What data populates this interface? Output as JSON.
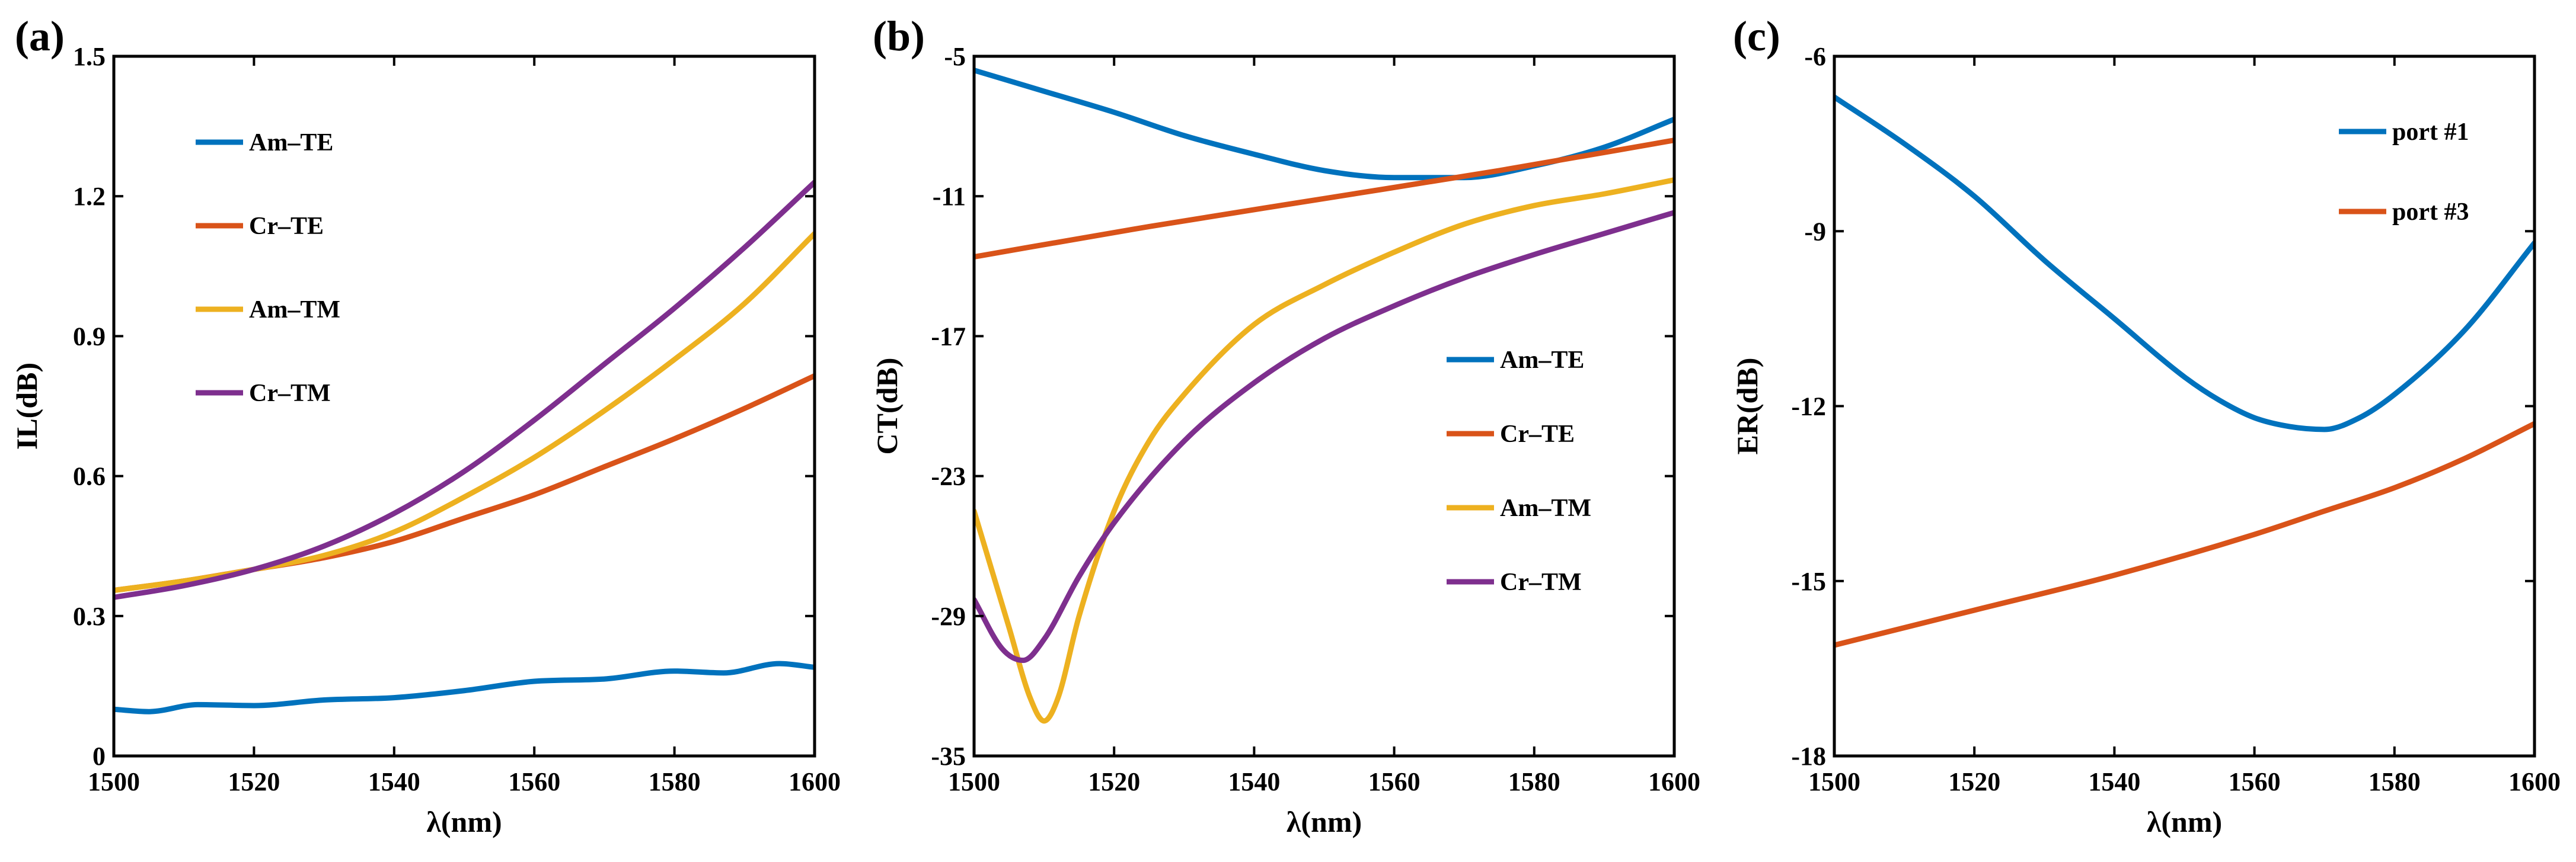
{
  "figure": {
    "name": "three-panel-spectra-figure"
  },
  "colors": {
    "blue": "#0072BD",
    "orange": "#D95319",
    "yellow": "#EDB120",
    "purple": "#7E2F8E",
    "axis": "#000000"
  },
  "chart_data": [
    {
      "panel": "(a)",
      "type": "line",
      "xlabel": "λ(nm)",
      "ylabel": "IL(dB)",
      "xlim": [
        1500,
        1600
      ],
      "ylim": [
        0,
        1.5
      ],
      "xticks": [
        1500,
        1520,
        1540,
        1560,
        1580,
        1600
      ],
      "xtick_labels": [
        "1500",
        "1520",
        "1540",
        "1560",
        "1580",
        "1600"
      ],
      "yticks": [
        0,
        0.3,
        0.6,
        0.9,
        1.2,
        1.5
      ],
      "ytick_labels": [
        "0",
        "0.3",
        "0.6",
        "0.9",
        "1.2",
        "1.5"
      ],
      "legend_position": "top-left",
      "series": [
        {
          "name": "Am–TE",
          "color": "#0072BD",
          "x": [
            1500,
            1505,
            1512,
            1520,
            1530,
            1540,
            1550,
            1560,
            1570,
            1580,
            1587,
            1595,
            1600
          ],
          "y": [
            0.1,
            0.095,
            0.11,
            0.108,
            0.12,
            0.125,
            0.14,
            0.16,
            0.165,
            0.182,
            0.178,
            0.198,
            0.19
          ]
        },
        {
          "name": "Cr–TE",
          "color": "#D95319",
          "x": [
            1500,
            1510,
            1520,
            1530,
            1540,
            1550,
            1560,
            1570,
            1580,
            1590,
            1600
          ],
          "y": [
            0.355,
            0.375,
            0.4,
            0.425,
            0.46,
            0.51,
            0.56,
            0.62,
            0.68,
            0.745,
            0.815
          ]
        },
        {
          "name": "Am–TM",
          "color": "#EDB120",
          "x": [
            1500,
            1510,
            1520,
            1530,
            1540,
            1550,
            1560,
            1570,
            1580,
            1590,
            1600
          ],
          "y": [
            0.355,
            0.375,
            0.4,
            0.43,
            0.48,
            0.555,
            0.64,
            0.74,
            0.85,
            0.97,
            1.12
          ]
        },
        {
          "name": "Cr–TM",
          "color": "#7E2F8E",
          "x": [
            1500,
            1510,
            1520,
            1530,
            1540,
            1550,
            1560,
            1570,
            1580,
            1590,
            1600
          ],
          "y": [
            0.34,
            0.365,
            0.4,
            0.45,
            0.52,
            0.61,
            0.72,
            0.84,
            0.96,
            1.09,
            1.23
          ]
        }
      ]
    },
    {
      "panel": "(b)",
      "type": "line",
      "xlabel": "λ(nm)",
      "ylabel": "CT(dB)",
      "xlim": [
        1500,
        1600
      ],
      "ylim": [
        -35,
        -5
      ],
      "xticks": [
        1500,
        1520,
        1540,
        1560,
        1580,
        1600
      ],
      "xtick_labels": [
        "1500",
        "1520",
        "1540",
        "1560",
        "1580",
        "1600"
      ],
      "yticks": [
        -35,
        -29,
        -23,
        -17,
        -11,
        -5
      ],
      "ytick_labels": [
        "-35",
        "-29",
        "-23",
        "-17",
        "-11",
        "-5"
      ],
      "legend_position": "middle-right",
      "series": [
        {
          "name": "Am–TE",
          "color": "#0072BD",
          "x": [
            1500,
            1510,
            1520,
            1530,
            1540,
            1550,
            1560,
            1570,
            1580,
            1590,
            1600
          ],
          "y": [
            -5.6,
            -6.5,
            -7.4,
            -8.4,
            -9.2,
            -9.9,
            -10.2,
            -10.2,
            -9.7,
            -8.9,
            -7.7
          ]
        },
        {
          "name": "Cr–TE",
          "color": "#D95319",
          "x": [
            1500,
            1525,
            1550,
            1575,
            1600
          ],
          "y": [
            -13.6,
            -12.3,
            -11.1,
            -9.9,
            -8.6
          ]
        },
        {
          "name": "Am–TM",
          "color": "#EDB120",
          "x": [
            1500,
            1505,
            1508,
            1510,
            1512,
            1515,
            1520,
            1525,
            1530,
            1540,
            1550,
            1560,
            1570,
            1580,
            1590,
            1600
          ],
          "y": [
            -24.5,
            -29.5,
            -32.5,
            -33.5,
            -32.5,
            -29,
            -24.5,
            -21.5,
            -19.5,
            -16.5,
            -14.8,
            -13.4,
            -12.2,
            -11.4,
            -10.9,
            -10.3
          ]
        },
        {
          "name": "Cr–TM",
          "color": "#7E2F8E",
          "x": [
            1500,
            1504,
            1507,
            1510,
            1515,
            1520,
            1530,
            1540,
            1550,
            1560,
            1570,
            1580,
            1590,
            1600
          ],
          "y": [
            -28.3,
            -30.4,
            -30.9,
            -30.0,
            -27.3,
            -25.0,
            -21.5,
            -19.0,
            -17.1,
            -15.7,
            -14.5,
            -13.5,
            -12.6,
            -11.7
          ]
        }
      ]
    },
    {
      "panel": "(c)",
      "type": "line",
      "xlabel": "λ(nm)",
      "ylabel": "ER(dB)",
      "xlim": [
        1500,
        1600
      ],
      "ylim": [
        -18,
        -6
      ],
      "xticks": [
        1500,
        1520,
        1540,
        1560,
        1580,
        1600
      ],
      "xtick_labels": [
        "1500",
        "1520",
        "1540",
        "1560",
        "1580",
        "1600"
      ],
      "yticks": [
        -18,
        -15,
        -12,
        -9,
        -6
      ],
      "ytick_labels": [
        "-18",
        "-15",
        "-12",
        "-9",
        "-6"
      ],
      "legend_position": "top-right",
      "series": [
        {
          "name": "port #1",
          "color": "#0072BD",
          "x": [
            1500,
            1510,
            1520,
            1530,
            1540,
            1550,
            1555,
            1560,
            1565,
            1570,
            1575,
            1580,
            1590,
            1600
          ],
          "y": [
            -6.7,
            -7.5,
            -8.4,
            -9.5,
            -10.5,
            -11.5,
            -11.9,
            -12.2,
            -12.35,
            -12.4,
            -12.2,
            -11.8,
            -10.7,
            -9.2
          ]
        },
        {
          "name": "port #3",
          "color": "#D95319",
          "x": [
            1500,
            1520,
            1540,
            1560,
            1570,
            1580,
            1590,
            1600
          ],
          "y": [
            -16.1,
            -15.5,
            -14.9,
            -14.2,
            -13.8,
            -13.4,
            -12.9,
            -12.3
          ]
        }
      ]
    }
  ]
}
